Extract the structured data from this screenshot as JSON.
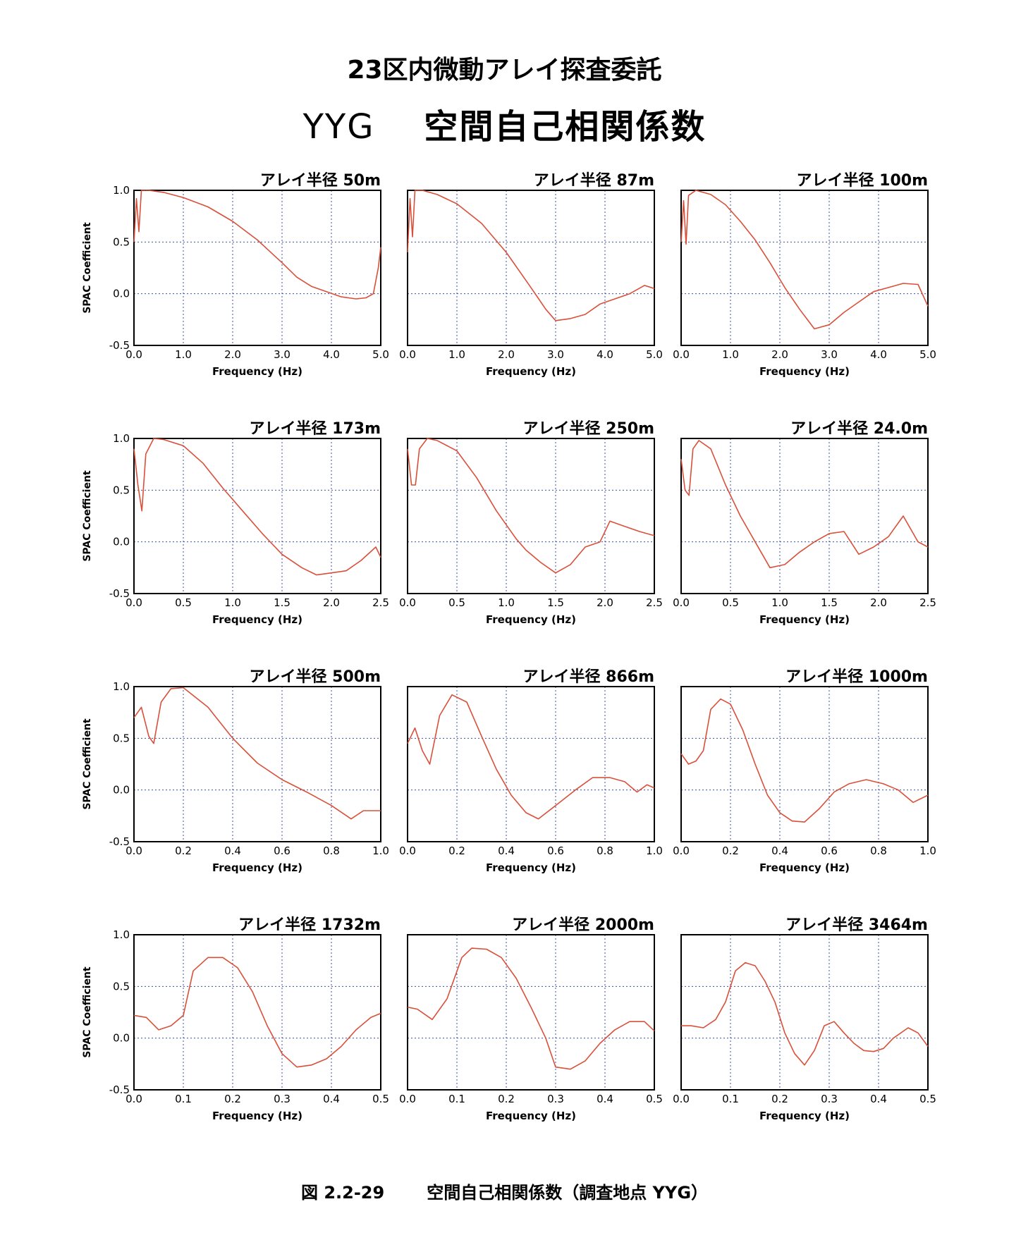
{
  "header": {
    "title": "23区内微動アレイ探査委託",
    "site": "YYG",
    "subtitle": "空間自己相関係数"
  },
  "caption": {
    "figure_number": "図 2.2-29",
    "text": "空間自己相関係数（調査地点 YYG）"
  },
  "colors": {
    "curve": "#d9503a",
    "grid": "#3a4fa8",
    "frame": "#000000"
  },
  "chart_data": [
    {
      "type": "line",
      "title": "アレイ半径 50m",
      "xlabel": "Frequency (Hz)",
      "ylabel": "SPAC Coefficient",
      "xlim": [
        0,
        5
      ],
      "ylim": [
        -0.5,
        1.0
      ],
      "xticks": [
        "0.0",
        "1.0",
        "2.0",
        "3.0",
        "4.0",
        "5.0"
      ],
      "yticks": [
        "-0.5",
        "0.0",
        "0.5",
        "1.0"
      ],
      "grid": true,
      "x": [
        0,
        0.05,
        0.1,
        0.15,
        0.3,
        0.6,
        1.0,
        1.5,
        2.0,
        2.5,
        3.0,
        3.3,
        3.6,
        3.9,
        4.2,
        4.5,
        4.7,
        4.85,
        4.95,
        5.0
      ],
      "y": [
        0.5,
        0.92,
        0.6,
        1.0,
        1.0,
        0.98,
        0.93,
        0.84,
        0.7,
        0.52,
        0.3,
        0.16,
        0.07,
        0.02,
        -0.03,
        -0.05,
        -0.04,
        0.0,
        0.25,
        0.45
      ]
    },
    {
      "type": "line",
      "title": "アレイ半径 87m",
      "xlabel": "Frequency (Hz)",
      "ylabel": "",
      "xlim": [
        0,
        5
      ],
      "ylim": [
        -0.5,
        1.0
      ],
      "xticks": [
        "0.0",
        "1.0",
        "2.0",
        "3.0",
        "4.0",
        "5.0"
      ],
      "yticks": [],
      "grid": true,
      "x": [
        0,
        0.05,
        0.1,
        0.15,
        0.3,
        0.6,
        1.0,
        1.5,
        2.0,
        2.5,
        2.8,
        3.0,
        3.3,
        3.6,
        3.9,
        4.2,
        4.5,
        4.8,
        5.0
      ],
      "y": [
        0.4,
        0.92,
        0.55,
        1.0,
        1.0,
        0.96,
        0.87,
        0.68,
        0.4,
        0.06,
        -0.15,
        -0.26,
        -0.24,
        -0.2,
        -0.1,
        -0.05,
        0.0,
        0.08,
        0.05
      ]
    },
    {
      "type": "line",
      "title": "アレイ半径 100m",
      "xlabel": "Frequency (Hz)",
      "ylabel": "",
      "xlim": [
        0,
        5
      ],
      "ylim": [
        -0.5,
        1.0
      ],
      "xticks": [
        "0.0",
        "1.0",
        "2.0",
        "3.0",
        "4.0",
        "5.0"
      ],
      "yticks": [],
      "grid": true,
      "x": [
        0,
        0.05,
        0.1,
        0.15,
        0.3,
        0.6,
        0.9,
        1.2,
        1.5,
        1.8,
        2.1,
        2.4,
        2.7,
        3.0,
        3.3,
        3.6,
        3.9,
        4.2,
        4.5,
        4.8,
        5.0
      ],
      "y": [
        0.5,
        0.9,
        0.48,
        0.95,
        1.0,
        0.96,
        0.86,
        0.7,
        0.52,
        0.3,
        0.06,
        -0.15,
        -0.34,
        -0.3,
        -0.18,
        -0.08,
        0.02,
        0.06,
        0.1,
        0.09,
        -0.12
      ]
    },
    {
      "type": "line",
      "title": "アレイ半径 173m",
      "xlabel": "Frequency (Hz)",
      "ylabel": "SPAC Coefficient",
      "xlim": [
        0,
        2.5
      ],
      "ylim": [
        -0.5,
        1.0
      ],
      "xticks": [
        "0.0",
        "0.5",
        "1.0",
        "1.5",
        "2.0",
        "2.5"
      ],
      "yticks": [
        "-0.5",
        "0.0",
        "0.5",
        "1.0"
      ],
      "grid": true,
      "x": [
        0,
        0.04,
        0.08,
        0.12,
        0.2,
        0.3,
        0.5,
        0.7,
        0.9,
        1.1,
        1.3,
        1.5,
        1.7,
        1.85,
        2.0,
        2.15,
        2.3,
        2.45,
        2.5
      ],
      "y": [
        0.9,
        0.55,
        0.3,
        0.85,
        1.0,
        0.99,
        0.93,
        0.76,
        0.52,
        0.3,
        0.08,
        -0.12,
        -0.25,
        -0.32,
        -0.3,
        -0.28,
        -0.18,
        -0.05,
        -0.15
      ]
    },
    {
      "type": "line",
      "title": "アレイ半径 250m",
      "xlabel": "Frequency (Hz)",
      "ylabel": "",
      "xlim": [
        0,
        2.5
      ],
      "ylim": [
        -0.5,
        1.0
      ],
      "xticks": [
        "0.0",
        "0.5",
        "1.0",
        "1.5",
        "2.0",
        "2.5"
      ],
      "yticks": [],
      "grid": true,
      "x": [
        0,
        0.04,
        0.08,
        0.12,
        0.2,
        0.3,
        0.5,
        0.7,
        0.9,
        1.1,
        1.2,
        1.35,
        1.5,
        1.65,
        1.8,
        1.95,
        2.05,
        2.2,
        2.35,
        2.5
      ],
      "y": [
        0.9,
        0.55,
        0.55,
        0.9,
        1.0,
        0.98,
        0.88,
        0.62,
        0.3,
        0.03,
        -0.08,
        -0.2,
        -0.3,
        -0.22,
        -0.05,
        0.0,
        0.2,
        0.15,
        0.1,
        0.06
      ]
    },
    {
      "type": "line",
      "title": "アレイ半径 24.0m",
      "xlabel": "Frequency (Hz)",
      "ylabel": "",
      "xlim": [
        0,
        2.5
      ],
      "ylim": [
        -0.5,
        1.0
      ],
      "xticks": [
        "0.0",
        "0.5",
        "1.0",
        "1.5",
        "2.0",
        "2.5"
      ],
      "yticks": [],
      "grid": true,
      "x": [
        0,
        0.04,
        0.08,
        0.12,
        0.18,
        0.3,
        0.45,
        0.6,
        0.75,
        0.9,
        1.05,
        1.2,
        1.35,
        1.5,
        1.65,
        1.8,
        1.95,
        2.1,
        2.25,
        2.4,
        2.5
      ],
      "y": [
        0.8,
        0.5,
        0.45,
        0.9,
        0.98,
        0.9,
        0.55,
        0.25,
        0.0,
        -0.25,
        -0.22,
        -0.1,
        0.0,
        0.08,
        0.1,
        -0.12,
        -0.05,
        0.05,
        0.25,
        0.0,
        -0.05
      ]
    },
    {
      "type": "line",
      "title": "アレイ半径 500m",
      "xlabel": "Frequency (Hz)",
      "ylabel": "SPAC Coefficient",
      "xlim": [
        0,
        1.0
      ],
      "ylim": [
        -0.5,
        1.0
      ],
      "xticks": [
        "0.0",
        "0.2",
        "0.4",
        "0.6",
        "0.8",
        "1.0"
      ],
      "yticks": [
        "-0.5",
        "0.0",
        "0.5",
        "1.0"
      ],
      "grid": true,
      "x": [
        0,
        0.03,
        0.06,
        0.08,
        0.11,
        0.15,
        0.2,
        0.3,
        0.4,
        0.5,
        0.6,
        0.7,
        0.8,
        0.88,
        0.93,
        1.0
      ],
      "y": [
        0.7,
        0.8,
        0.52,
        0.45,
        0.85,
        0.98,
        0.99,
        0.8,
        0.5,
        0.26,
        0.1,
        -0.02,
        -0.15,
        -0.28,
        -0.2,
        -0.2
      ]
    },
    {
      "type": "line",
      "title": "アレイ半径 866m",
      "xlabel": "Frequency (Hz)",
      "ylabel": "",
      "xlim": [
        0,
        1.0
      ],
      "ylim": [
        -0.5,
        1.0
      ],
      "xticks": [
        "0.0",
        "0.2",
        "0.4",
        "0.6",
        "0.8",
        "1.0"
      ],
      "yticks": [],
      "grid": true,
      "x": [
        0,
        0.03,
        0.06,
        0.09,
        0.13,
        0.18,
        0.24,
        0.3,
        0.36,
        0.42,
        0.48,
        0.53,
        0.6,
        0.68,
        0.75,
        0.82,
        0.88,
        0.93,
        0.97,
        1.0
      ],
      "y": [
        0.45,
        0.6,
        0.38,
        0.25,
        0.72,
        0.92,
        0.85,
        0.52,
        0.2,
        -0.05,
        -0.22,
        -0.28,
        -0.15,
        0.0,
        0.12,
        0.12,
        0.08,
        -0.02,
        0.05,
        0.02
      ]
    },
    {
      "type": "line",
      "title": "アレイ半径 1000m",
      "xlabel": "Frequency (Hz)",
      "ylabel": "",
      "xlim": [
        0,
        1.0
      ],
      "ylim": [
        -0.5,
        1.0
      ],
      "xticks": [
        "0.0",
        "0.2",
        "0.4",
        "0.6",
        "0.8",
        "1.0"
      ],
      "yticks": [],
      "grid": true,
      "x": [
        0,
        0.03,
        0.06,
        0.09,
        0.12,
        0.16,
        0.2,
        0.25,
        0.3,
        0.35,
        0.4,
        0.45,
        0.5,
        0.56,
        0.62,
        0.68,
        0.75,
        0.82,
        0.88,
        0.94,
        1.0
      ],
      "y": [
        0.35,
        0.25,
        0.28,
        0.38,
        0.78,
        0.88,
        0.83,
        0.58,
        0.25,
        -0.05,
        -0.22,
        -0.3,
        -0.31,
        -0.18,
        -0.02,
        0.06,
        0.1,
        0.06,
        0.0,
        -0.12,
        -0.05
      ]
    },
    {
      "type": "line",
      "title": "アレイ半径 1732m",
      "xlabel": "Frequency (Hz)",
      "ylabel": "SPAC Coefficient",
      "xlim": [
        0,
        0.5
      ],
      "ylim": [
        -0.5,
        1.0
      ],
      "xticks": [
        "0.0",
        "0.1",
        "0.2",
        "0.3",
        "0.4",
        "0.5"
      ],
      "yticks": [
        "-0.5",
        "0.0",
        "0.5",
        "1.0"
      ],
      "grid": true,
      "x": [
        0,
        0.025,
        0.05,
        0.075,
        0.1,
        0.12,
        0.15,
        0.18,
        0.21,
        0.24,
        0.27,
        0.3,
        0.33,
        0.36,
        0.39,
        0.42,
        0.45,
        0.48,
        0.5
      ],
      "y": [
        0.22,
        0.2,
        0.08,
        0.12,
        0.22,
        0.65,
        0.78,
        0.78,
        0.68,
        0.45,
        0.12,
        -0.15,
        -0.28,
        -0.26,
        -0.2,
        -0.08,
        0.08,
        0.2,
        0.24
      ]
    },
    {
      "type": "line",
      "title": "アレイ半径 2000m",
      "xlabel": "Frequency (Hz)",
      "ylabel": "",
      "xlim": [
        0,
        0.5
      ],
      "ylim": [
        -0.5,
        1.0
      ],
      "xticks": [
        "0.0",
        "0.1",
        "0.2",
        "0.3",
        "0.4",
        "0.5"
      ],
      "yticks": [],
      "grid": true,
      "x": [
        0,
        0.02,
        0.05,
        0.08,
        0.11,
        0.13,
        0.16,
        0.19,
        0.22,
        0.25,
        0.28,
        0.3,
        0.33,
        0.36,
        0.39,
        0.42,
        0.45,
        0.48,
        0.5
      ],
      "y": [
        0.3,
        0.28,
        0.18,
        0.38,
        0.78,
        0.87,
        0.86,
        0.78,
        0.58,
        0.3,
        0.0,
        -0.28,
        -0.3,
        -0.22,
        -0.05,
        0.08,
        0.16,
        0.16,
        0.07
      ]
    },
    {
      "type": "line",
      "title": "アレイ半径 3464m",
      "xlabel": "Frequency (Hz)",
      "ylabel": "",
      "xlim": [
        0,
        0.5
      ],
      "ylim": [
        -0.5,
        1.0
      ],
      "xticks": [
        "0.0",
        "0.1",
        "0.2",
        "0.3",
        "0.4",
        "0.5"
      ],
      "yticks": [],
      "grid": true,
      "x": [
        0,
        0.02,
        0.045,
        0.07,
        0.09,
        0.11,
        0.13,
        0.15,
        0.17,
        0.19,
        0.21,
        0.23,
        0.25,
        0.27,
        0.29,
        0.31,
        0.33,
        0.35,
        0.37,
        0.39,
        0.41,
        0.43,
        0.46,
        0.48,
        0.5
      ],
      "y": [
        0.12,
        0.12,
        0.1,
        0.18,
        0.35,
        0.65,
        0.73,
        0.7,
        0.55,
        0.35,
        0.05,
        -0.15,
        -0.26,
        -0.12,
        0.12,
        0.16,
        0.05,
        -0.05,
        -0.12,
        -0.13,
        -0.1,
        0.0,
        0.1,
        0.05,
        -0.08
      ]
    }
  ]
}
